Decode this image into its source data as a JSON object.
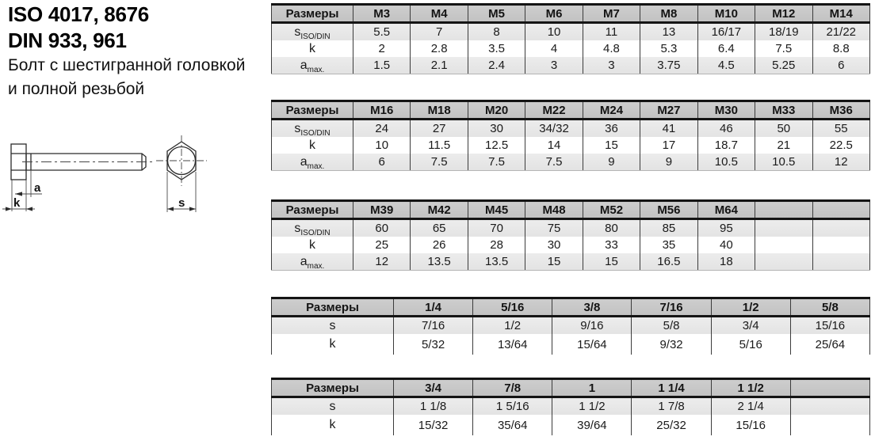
{
  "header": {
    "title_line1": "ISO 4017, 8676",
    "title_line2": "DIN 933, 961",
    "subtitle_line1": "Болт с шестигранной головкой",
    "subtitle_line2": "и полной резьбой"
  },
  "diagram": {
    "labels": {
      "a": "a",
      "k": "k",
      "s": "s"
    }
  },
  "colors": {
    "table_header_bg": "#c7c7c7",
    "table_alt_row_bg": "#e8e8e8",
    "border_dark": "#141414",
    "grid_line": "#3c3c3c",
    "text": "#1a1a1a"
  },
  "tables": [
    {
      "header": [
        "Размеры",
        "M3",
        "M4",
        "M5",
        "M6",
        "M7",
        "M8",
        "M10",
        "M12",
        "M14"
      ],
      "rows": [
        {
          "label": "s",
          "sub": "ISO/DIN",
          "values": [
            "5.5",
            "7",
            "8",
            "10",
            "11",
            "13",
            "16/17",
            "18/19",
            "21/22"
          ]
        },
        {
          "label": "k",
          "sub": "",
          "values": [
            "2",
            "2.8",
            "3.5",
            "4",
            "4.8",
            "5.3",
            "6.4",
            "7.5",
            "8.8"
          ]
        },
        {
          "label": "a",
          "sub": "max.",
          "values": [
            "1.5",
            "2.1",
            "2.4",
            "3",
            "3",
            "3.75",
            "4.5",
            "5.25",
            "6"
          ]
        }
      ]
    },
    {
      "header": [
        "Размеры",
        "M16",
        "M18",
        "M20",
        "M22",
        "M24",
        "M27",
        "M30",
        "M33",
        "M36"
      ],
      "rows": [
        {
          "label": "s",
          "sub": "ISO/DIN",
          "values": [
            "24",
            "27",
            "30",
            "34/32",
            "36",
            "41",
            "46",
            "50",
            "55"
          ]
        },
        {
          "label": "k",
          "sub": "",
          "values": [
            "10",
            "11.5",
            "12.5",
            "14",
            "15",
            "17",
            "18.7",
            "21",
            "22.5"
          ]
        },
        {
          "label": "a",
          "sub": "max.",
          "values": [
            "6",
            "7.5",
            "7.5",
            "7.5",
            "9",
            "9",
            "10.5",
            "10.5",
            "12"
          ]
        }
      ]
    },
    {
      "header": [
        "Размеры",
        "M39",
        "M42",
        "M45",
        "M48",
        "M52",
        "M56",
        "M64",
        "",
        ""
      ],
      "rows": [
        {
          "label": "s",
          "sub": "ISO/DIN",
          "values": [
            "60",
            "65",
            "70",
            "75",
            "80",
            "85",
            "95",
            "",
            ""
          ]
        },
        {
          "label": "k",
          "sub": "",
          "values": [
            "25",
            "26",
            "28",
            "30",
            "33",
            "35",
            "40",
            "",
            ""
          ]
        },
        {
          "label": "a",
          "sub": "max.",
          "values": [
            "12",
            "13.5",
            "13.5",
            "15",
            "15",
            "16.5",
            "18",
            "",
            ""
          ]
        }
      ]
    },
    {
      "header": [
        "Размеры",
        "1/4",
        "5/16",
        "3/8",
        "7/16",
        "1/2",
        "5/8"
      ],
      "rows": [
        {
          "label": "s",
          "sub": "",
          "values": [
            "7/16",
            "1/2",
            "9/16",
            "5/8",
            "3/4",
            "15/16"
          ]
        },
        {
          "label": "k",
          "sub": "",
          "values": [
            "5/32",
            "13/64",
            "15/64",
            "9/32",
            "5/16",
            "25/64"
          ]
        }
      ]
    },
    {
      "header": [
        "Размеры",
        "3/4",
        "7/8",
        "1",
        "1 1/4",
        "1 1/2",
        ""
      ],
      "rows": [
        {
          "label": "s",
          "sub": "",
          "values": [
            "1 1/8",
            "1 5/16",
            "1 1/2",
            "1 7/8",
            "2 1/4",
            ""
          ]
        },
        {
          "label": "k",
          "sub": "",
          "values": [
            "15/32",
            "35/64",
            "39/64",
            "25/32",
            "15/16",
            ""
          ]
        }
      ]
    }
  ]
}
